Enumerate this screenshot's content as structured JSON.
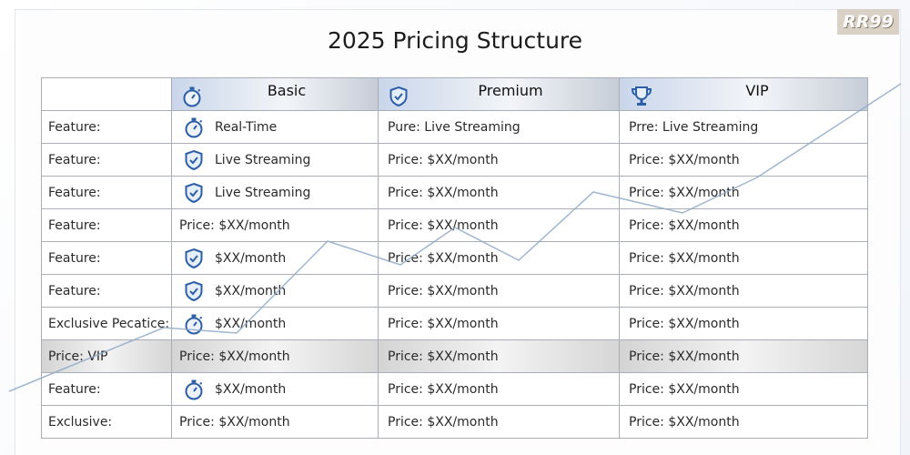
{
  "logo": "RR99",
  "header": {
    "title": "2025 Pricing Structure"
  },
  "table": {
    "columns": [
      "",
      "Basic",
      "Premium",
      "VIP"
    ],
    "rows": [
      [
        "Feature:",
        "Real-Time",
        "Pure: Live Streaming",
        "Prre: Live Streaming"
      ],
      [
        "Feature:",
        "Live Streaming",
        "Price: $XX/month",
        "Price: $XX/month"
      ],
      [
        "Feature:",
        "Live Streaming",
        "Price: $XX/month",
        "Price: $XX/month"
      ],
      [
        "Feature:",
        "Price: $XX/month",
        "Price: $XX/month",
        "Price: $XX/month"
      ],
      [
        "Feature:",
        "$XX/month",
        "Price: $XX/month",
        "Price: $XX/month"
      ],
      [
        "Feature:",
        "$XX/month",
        "Price: $XX/month",
        "Price: $XX/month"
      ],
      [
        "Exclusive Pecatice:",
        "$XX/month",
        "Price: $XX/month",
        "Price: $XX/month"
      ],
      [
        "Price: VIP",
        "Price: $XX/month",
        "Price: $XX/month",
        "Price: $XX/month"
      ],
      [
        "Feature:",
        "$XX/month",
        "Price: $XX/month",
        "Price: $XX/month"
      ],
      [
        "Exclusive:",
        "Price: $XX/month",
        "Price: $XX/month",
        "Price: $XX/month"
      ]
    ]
  }
}
